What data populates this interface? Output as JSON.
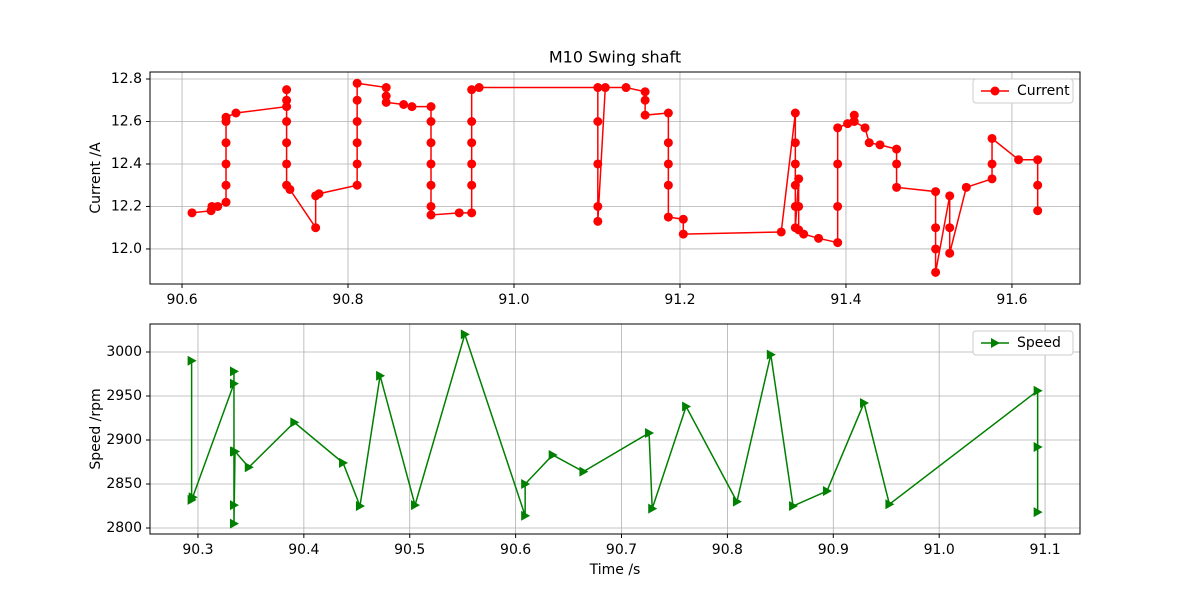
{
  "chart_data": [
    {
      "type": "line",
      "title": "M10 Swing shaft",
      "ylabel": "Current /A",
      "grid": true,
      "legend": "upper right",
      "xlim": [
        90.5614,
        91.682
      ],
      "ylim": [
        11.835,
        12.833
      ],
      "xticks": [
        90.6,
        90.8,
        {
          "value": 91,
          "label": "91.0"
        },
        91.2,
        91.4,
        91.6
      ],
      "yticks": [
        {
          "value": 12,
          "label": "12.0"
        },
        12.2,
        12.4,
        12.6,
        12.8
      ],
      "x": [
        90.612,
        90.635,
        90.636,
        90.643,
        90.653,
        90.653,
        90.653,
        90.653,
        90.653,
        90.653,
        90.665,
        90.726,
        90.726,
        90.726,
        90.726,
        90.726,
        90.726,
        90.726,
        90.73,
        90.761,
        90.761,
        90.765,
        90.811,
        90.811,
        90.811,
        90.811,
        90.811,
        90.811,
        90.846,
        90.846,
        90.846,
        90.867,
        90.877,
        90.9,
        90.9,
        90.9,
        90.9,
        90.9,
        90.9,
        90.9,
        90.934,
        90.949,
        90.949,
        90.949,
        90.949,
        90.949,
        90.949,
        90.958,
        91.101,
        91.101,
        91.101,
        91.101,
        91.101,
        91.11,
        91.135,
        91.158,
        91.158,
        91.158,
        91.186,
        91.186,
        91.186,
        91.186,
        91.186,
        91.204,
        91.204,
        91.322,
        91.339,
        91.339,
        91.339,
        91.339,
        91.339,
        91.339,
        91.343,
        91.343,
        91.343,
        91.349,
        91.367,
        91.39,
        91.39,
        91.39,
        91.39,
        91.402,
        91.41,
        91.41,
        91.423,
        91.428,
        91.441,
        91.461,
        91.461,
        91.461,
        91.508,
        91.508,
        91.508,
        91.508,
        91.525,
        91.525,
        91.525,
        91.545,
        91.576,
        91.576,
        91.576,
        91.608,
        91.631,
        91.631,
        91.631
      ],
      "series": [
        {
          "name": "Current",
          "color": "#ff0000",
          "marker": "circle",
          "values": [
            12.17,
            12.18,
            12.2,
            12.2,
            12.22,
            12.3,
            12.4,
            12.5,
            12.6,
            12.62,
            12.64,
            12.67,
            12.75,
            12.7,
            12.6,
            12.5,
            12.4,
            12.3,
            12.28,
            12.1,
            12.25,
            12.26,
            12.3,
            12.4,
            12.5,
            12.6,
            12.7,
            12.78,
            12.76,
            12.72,
            12.69,
            12.68,
            12.67,
            12.67,
            12.6,
            12.5,
            12.4,
            12.3,
            12.2,
            12.16,
            12.17,
            12.17,
            12.3,
            12.4,
            12.5,
            12.6,
            12.75,
            12.76,
            12.76,
            12.6,
            12.4,
            12.2,
            12.13,
            12.76,
            12.76,
            12.74,
            12.7,
            12.63,
            12.64,
            12.5,
            12.4,
            12.3,
            12.15,
            12.14,
            12.07,
            12.08,
            12.64,
            12.5,
            12.4,
            12.3,
            12.2,
            12.1,
            12.33,
            12.2,
            12.09,
            12.07,
            12.05,
            12.03,
            12.2,
            12.4,
            12.57,
            12.59,
            12.63,
            12.6,
            12.57,
            12.5,
            12.49,
            12.47,
            12.4,
            12.29,
            12.27,
            12.1,
            12.0,
            11.89,
            12.25,
            12.1,
            11.98,
            12.29,
            12.33,
            12.4,
            12.52,
            12.42,
            12.42,
            12.3,
            12.18
          ]
        }
      ]
    },
    {
      "type": "line",
      "ylabel": "Speed /rpm",
      "xlabel": "Time /s",
      "grid": true,
      "legend": "upper right",
      "xlim": [
        90.2547,
        91.133
      ],
      "ylim": [
        2793.2,
        3031.8
      ],
      "xticks": [
        90.3,
        90.4,
        90.5,
        90.6,
        90.7,
        90.8,
        90.9,
        {
          "value": 91,
          "label": "91.0"
        },
        91.1
      ],
      "yticks": [
        2800,
        2850,
        2900,
        2950,
        3000
      ],
      "x": [
        90.294,
        90.294,
        90.295,
        90.334,
        90.334,
        90.334,
        90.334,
        90.334,
        90.335,
        90.348,
        90.391,
        90.437,
        90.453,
        90.472,
        90.505,
        90.552,
        90.609,
        90.609,
        90.635,
        90.664,
        90.726,
        90.729,
        90.761,
        90.809,
        90.841,
        90.862,
        90.894,
        90.929,
        90.953,
        91.093,
        91.093,
        91.093
      ],
      "series": [
        {
          "name": "Speed",
          "color": "#008000",
          "marker": "triangle-right",
          "values": [
            2990,
            2832,
            2835,
            2964,
            2978,
            2887,
            2826,
            2805,
            2887,
            2869,
            2920,
            2874,
            2825,
            2973,
            2826,
            3020,
            2814,
            2850,
            2883,
            2864,
            2908,
            2822,
            2938,
            2830,
            2997,
            2825,
            2842,
            2942,
            2827,
            2956,
            2892,
            2818
          ]
        }
      ]
    }
  ]
}
